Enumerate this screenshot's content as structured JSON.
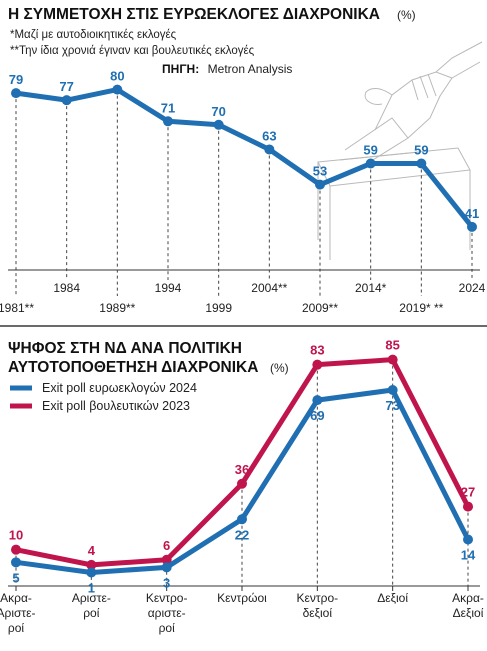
{
  "colors": {
    "blue": "#1f6fb2",
    "red": "#c0144c",
    "axis": "#333333",
    "divider": "#111111"
  },
  "chart1": {
    "title": "Η ΣΥΜΜΕΤΟΧΗ ΣΤΙΣ ΕΥΡΩΕΚΛΟΓΕΣ ΔΙΑΧΡΟΝΙΚΑ",
    "unit": "(%)",
    "note1": "*Μαζί με αυτοδιοικητικές εκλογές",
    "note2": "**Την ίδια χρονιά έγιναν και βουλευτικές εκλογές",
    "source_label": "ΠΗΓΗ:",
    "source": "Metron Analysis",
    "decorative_icon": "hand-casting-ballot-illustration"
  },
  "chart2": {
    "title_line1": "ΨΗΦΟΣ ΣΤΗ ΝΔ ΑΝΑ ΠΟΛΙΤΙΚΗ",
    "title_line2": "ΑΥΤΟΤΟΠΟΘΕΤΗΣΗ ΔΙΑΧΡΟΝΙΚΑ",
    "unit": "(%)"
  },
  "chart_data": [
    {
      "type": "line",
      "title": "Η ΣΥΜΜΕΤΟΧΗ ΣΤΙΣ ΕΥΡΩΕΚΛΟΓΕΣ ΔΙΑΧΡΟΝΙΚΑ",
      "categories": [
        "1981**",
        "1984",
        "1989**",
        "1994",
        "1999",
        "2004**",
        "2009**",
        "2014*",
        "2019* **",
        "2024"
      ],
      "values": [
        79,
        77,
        80,
        71,
        70,
        63,
        53,
        59,
        59,
        41
      ],
      "ylim": [
        35,
        85
      ],
      "grid": false,
      "color": "#1f6fb2"
    },
    {
      "type": "line",
      "title": "ΨΗΦΟΣ ΣΤΗ ΝΔ ΑΝΑ ΠΟΛΙΤΙΚΗ ΑΥΤΟΤΟΠΟΘΕΤΗΣΗ ΔΙΑΧΡΟΝΙΚΑ",
      "categories": [
        "Ακρα-Αριστεροί",
        "Αριστεροί",
        "Κεντρο-αριστεροί",
        "Κεντρώοι",
        "Κεντρο-δεξιοί",
        "Δεξιοί",
        "Ακρα-Δεξιοί"
      ],
      "category_lines": [
        [
          "Ακρα-",
          "Αριστε-",
          "ροί"
        ],
        [
          "Αριστε-",
          "ροί"
        ],
        [
          "Κεντρο-",
          "αριστε-",
          "ροί"
        ],
        [
          "Κεντρώοι"
        ],
        [
          "Κεντρο-",
          "δεξιοί"
        ],
        [
          "Δεξιοί"
        ],
        [
          "Ακρα-",
          "Δεξιοί"
        ]
      ],
      "series": [
        {
          "name": "Exit poll ευρωεκλογών 2024",
          "values": [
            5,
            1,
            3,
            22,
            69,
            73,
            14
          ],
          "color": "#1f6fb2"
        },
        {
          "name": "Exit poll βουλευτικών 2023",
          "values": [
            10,
            4,
            6,
            36,
            83,
            85,
            27
          ],
          "color": "#c0144c"
        }
      ],
      "ylim": [
        0,
        88
      ],
      "legend": "top-left",
      "grid": false
    }
  ]
}
